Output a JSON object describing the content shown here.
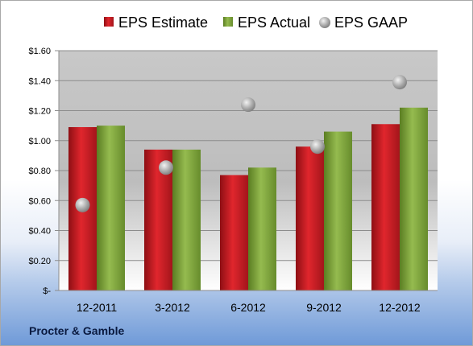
{
  "company": "Procter & Gamble",
  "colors": {
    "estimate": "#cc1f26",
    "actual": "#7fa53a",
    "gaap": "#a9a9a9"
  },
  "chart_data": {
    "type": "bar",
    "categories": [
      "12-2011",
      "3-2012",
      "6-2012",
      "9-2012",
      "12-2012"
    ],
    "series": [
      {
        "name": "EPS Estimate",
        "type": "bar",
        "values": [
          1.09,
          0.94,
          0.77,
          0.96,
          1.11
        ]
      },
      {
        "name": "EPS Actual",
        "type": "bar",
        "values": [
          1.1,
          0.94,
          0.82,
          1.06,
          1.22
        ]
      },
      {
        "name": "EPS GAAP",
        "type": "scatter",
        "values": [
          0.57,
          0.82,
          1.24,
          0.96,
          1.39
        ]
      }
    ],
    "ylim": [
      0,
      1.6
    ],
    "y_ticks": [
      0,
      0.2,
      0.4,
      0.6,
      0.8,
      1.0,
      1.2,
      1.4,
      1.6
    ],
    "y_tick_labels": [
      "$-",
      "$0.20",
      "$0.40",
      "$0.60",
      "$0.80",
      "$1.00",
      "$1.20",
      "$1.40",
      "$1.60"
    ],
    "grid": true,
    "legend_position": "top"
  }
}
